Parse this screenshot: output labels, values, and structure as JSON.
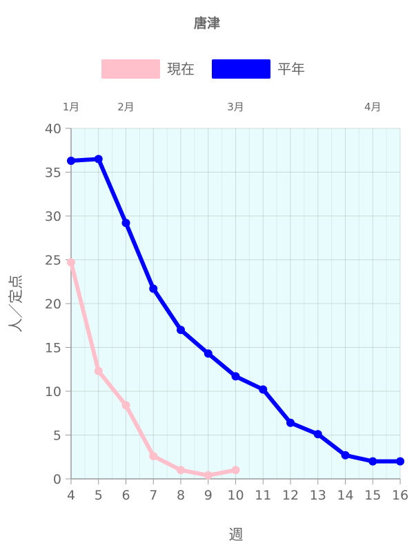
{
  "chart_data": {
    "type": "line",
    "title": "唐津",
    "xlabel": "週",
    "ylabel": "人／定点",
    "xlim": [
      4,
      16
    ],
    "ylim": [
      0,
      40
    ],
    "yticks": [
      0,
      5,
      10,
      15,
      20,
      25,
      30,
      35,
      40
    ],
    "xticks": [
      4,
      5,
      6,
      7,
      8,
      9,
      10,
      11,
      12,
      13,
      14,
      15,
      16
    ],
    "top_axis_labels": [
      {
        "label": "1月",
        "x": 4
      },
      {
        "label": "2月",
        "x": 6
      },
      {
        "label": "3月",
        "x": 10
      },
      {
        "label": "4月",
        "x": 15
      }
    ],
    "grid": true,
    "legend_position": "top-center",
    "plot_background": "#e8fcfd",
    "series": [
      {
        "name": "現在",
        "color": "#ffc0cb",
        "x": [
          4,
          5,
          6,
          7,
          8,
          9,
          10
        ],
        "values": [
          24.7,
          12.3,
          8.4,
          2.6,
          1.0,
          0.4,
          1.0
        ]
      },
      {
        "name": "平年",
        "color": "#0000ff",
        "x": [
          4,
          5,
          6,
          7,
          8,
          9,
          10,
          11,
          12,
          13,
          14,
          15,
          16
        ],
        "values": [
          36.3,
          36.5,
          29.2,
          21.7,
          17.0,
          14.3,
          11.7,
          10.2,
          6.4,
          5.1,
          2.7,
          2.0,
          2.0
        ]
      }
    ]
  }
}
